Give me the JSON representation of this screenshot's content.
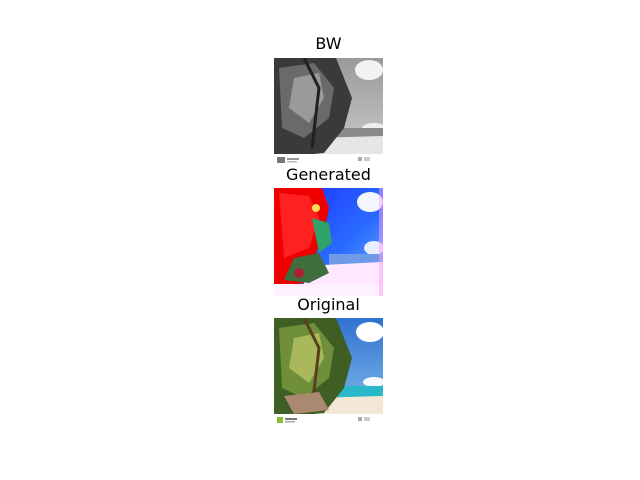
{
  "figure": {
    "panels": [
      {
        "title": "BW",
        "image": "grayscale-beach-palm-photo"
      },
      {
        "title": "Generated",
        "image": "colorized-generated-photo"
      },
      {
        "title": "Original",
        "image": "color-beach-palm-photo"
      }
    ]
  }
}
